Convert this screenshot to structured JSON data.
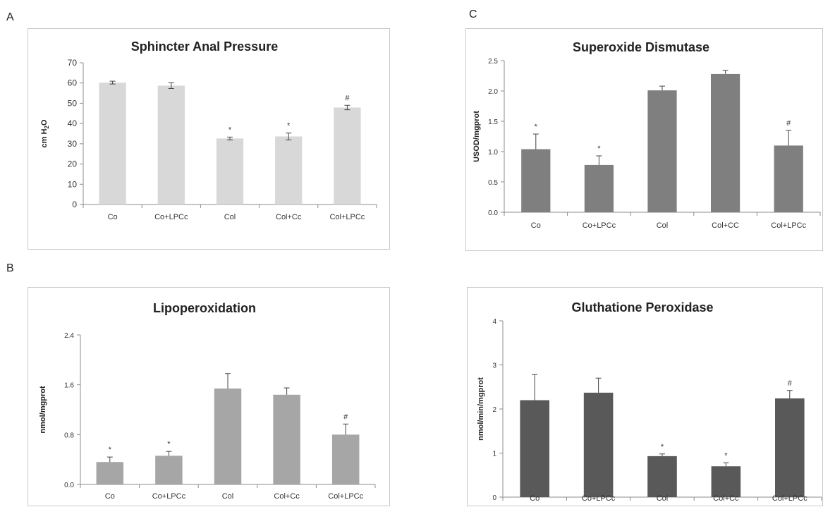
{
  "panel_letters": {
    "a": "A",
    "b": "B",
    "c": "C"
  },
  "chart_data": [
    {
      "type": "bar",
      "title": "Sphincter Anal Pressure",
      "ylabel_main": "cm H",
      "ylabel_sub": "2",
      "ylabel_tail": "O",
      "categories": [
        "Co",
        "Co+LPCc",
        "Col",
        "Col+Cc",
        "Col+LPCc"
      ],
      "values": [
        60.2,
        58.7,
        32.6,
        33.6,
        47.9
      ],
      "errors": [
        0.7,
        1.4,
        0.7,
        1.7,
        1.1
      ],
      "annotations": [
        "",
        "",
        "*",
        "*",
        "#"
      ],
      "ylim": [
        0,
        70
      ],
      "yticks": [
        "0",
        "10",
        "20",
        "30",
        "40",
        "50",
        "60",
        "70"
      ],
      "bar_color": "#d8d8d8",
      "caps": true
    },
    {
      "type": "bar",
      "title": "Lipoperoxidation",
      "ylabel": "nmol/mgprot",
      "categories": [
        "Co",
        "Co+LPCc",
        "Col",
        "Col+Cc",
        "Col+LPCc"
      ],
      "values": [
        0.36,
        0.46,
        1.54,
        1.44,
        0.8
      ],
      "errors": [
        0.08,
        0.07,
        0.24,
        0.11,
        0.17
      ],
      "annotations": [
        "*",
        "*",
        "",
        "",
        "#"
      ],
      "ylim": [
        0,
        2.4
      ],
      "yticks": [
        "0.0",
        "0.8",
        "1.6",
        "2.4"
      ],
      "bar_color": "#a6a6a6",
      "caps": false
    },
    {
      "type": "bar",
      "title": "Superoxide Dismutase",
      "ylabel": "USOD/mgprot",
      "categories": [
        "Co",
        "Co+LPCc",
        "Col",
        "Col+CC",
        "Col+LPCc"
      ],
      "values": [
        1.04,
        0.78,
        2.01,
        2.28,
        1.1
      ],
      "errors": [
        0.25,
        0.15,
        0.07,
        0.06,
        0.25
      ],
      "annotations": [
        "*",
        "*",
        "",
        "",
        "#"
      ],
      "ylim": [
        0,
        2.5
      ],
      "yticks": [
        "0.0",
        "0.5",
        "1.0",
        "1.5",
        "2.0",
        "2.5"
      ],
      "bar_color": "#7f7f7f",
      "caps": false
    },
    {
      "type": "bar",
      "title": "Gluthatione Peroxidase",
      "ylabel": "nmol/min/mgprot",
      "categories": [
        "Co",
        "Co+LPCc",
        "Col",
        "Col+Cc",
        "Col+LPCc"
      ],
      "values": [
        2.2,
        2.37,
        0.93,
        0.7,
        2.24
      ],
      "errors": [
        0.58,
        0.33,
        0.05,
        0.08,
        0.18
      ],
      "annotations": [
        "",
        "",
        "*",
        "*",
        "#"
      ],
      "ylim": [
        0,
        4
      ],
      "yticks": [
        "0",
        "1",
        "2",
        "3",
        "4"
      ],
      "bar_color": "#595959",
      "caps": false
    }
  ]
}
